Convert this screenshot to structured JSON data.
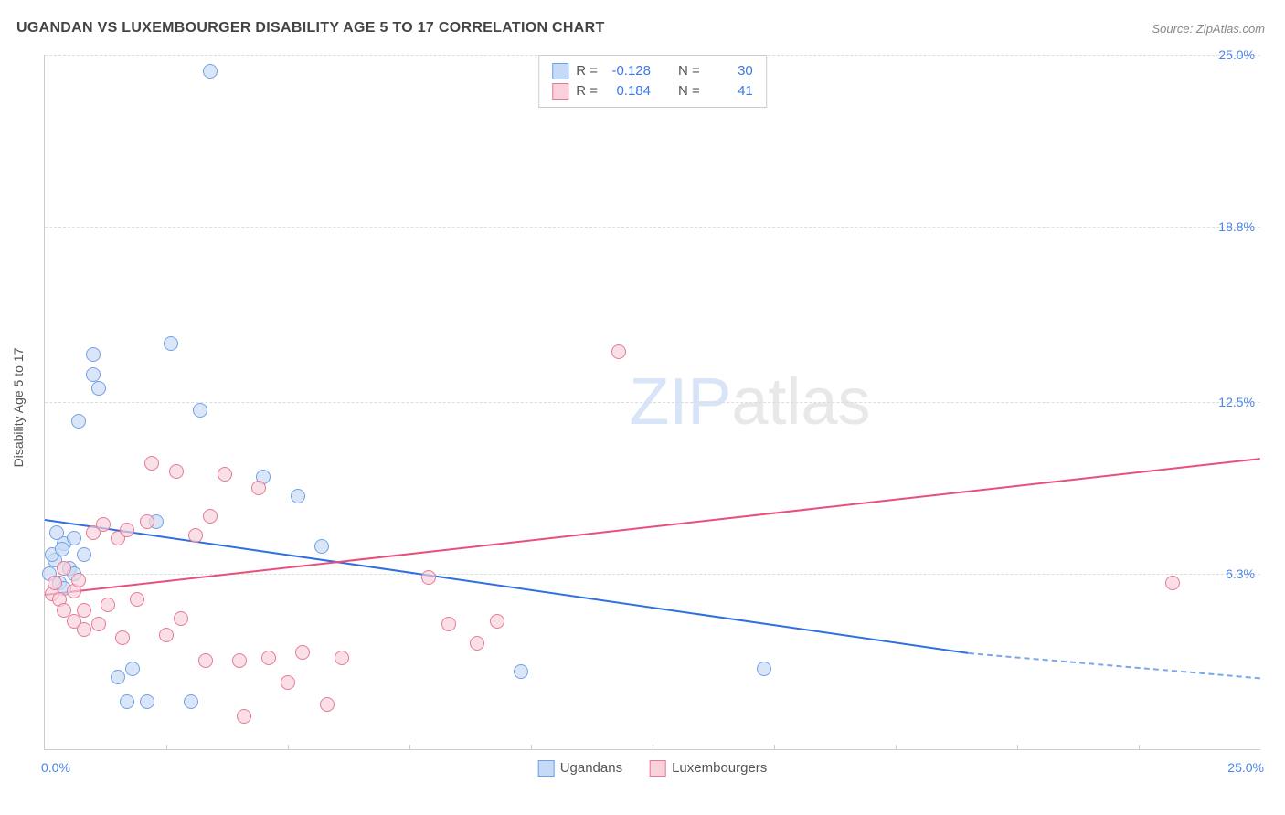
{
  "title": "UGANDAN VS LUXEMBOURGER DISABILITY AGE 5 TO 17 CORRELATION CHART",
  "source": "Source: ZipAtlas.com",
  "ylabel": "Disability Age 5 to 17",
  "watermark_a": "ZIP",
  "watermark_b": "atlas",
  "chart": {
    "type": "scatter",
    "xlim": [
      0,
      25
    ],
    "ylim": [
      0,
      25
    ],
    "xtick_min": "0.0%",
    "xtick_max": "25.0%",
    "yticks": [
      {
        "v": 6.3,
        "label": "6.3%"
      },
      {
        "v": 12.5,
        "label": "12.5%"
      },
      {
        "v": 18.8,
        "label": "18.8%"
      },
      {
        "v": 25.0,
        "label": "25.0%"
      }
    ],
    "xtick_minor_step": 2.5,
    "background_color": "#ffffff",
    "grid_color": "#dddddd",
    "axis_color": "#cccccc",
    "tick_label_color": "#4a86e8",
    "marker_radius": 7,
    "marker_stroke_width": 1.5
  },
  "series": [
    {
      "name": "Ugandans",
      "fill": "#c7daf5",
      "stroke": "#6fa1e6",
      "r": -0.128,
      "n": 30,
      "points": [
        [
          0.1,
          6.3
        ],
        [
          0.2,
          6.8
        ],
        [
          0.15,
          7.0
        ],
        [
          0.3,
          6.0
        ],
        [
          0.4,
          7.4
        ],
        [
          0.25,
          7.8
        ],
        [
          0.5,
          6.5
        ],
        [
          0.6,
          6.3
        ],
        [
          0.35,
          7.2
        ],
        [
          0.4,
          5.8
        ],
        [
          0.7,
          11.8
        ],
        [
          1.0,
          14.2
        ],
        [
          1.0,
          13.5
        ],
        [
          1.1,
          13.0
        ],
        [
          1.5,
          2.6
        ],
        [
          1.7,
          1.7
        ],
        [
          2.1,
          1.7
        ],
        [
          1.8,
          2.9
        ],
        [
          2.6,
          14.6
        ],
        [
          3.0,
          1.7
        ],
        [
          3.2,
          12.2
        ],
        [
          3.4,
          24.4
        ],
        [
          4.5,
          9.8
        ],
        [
          5.2,
          9.1
        ],
        [
          5.7,
          7.3
        ],
        [
          9.8,
          2.8
        ],
        [
          14.8,
          2.9
        ],
        [
          2.3,
          8.2
        ],
        [
          0.6,
          7.6
        ],
        [
          0.8,
          7.0
        ]
      ],
      "trend": {
        "x1": 0,
        "y1": 8.3,
        "x2": 19.0,
        "y2": 3.5,
        "style": "solid",
        "color": "#2f6fe0",
        "width": 2
      },
      "trend_ext": {
        "x1": 19.0,
        "y1": 3.5,
        "x2": 25.0,
        "y2": 2.6,
        "style": "dashed",
        "color": "#7aa6ea",
        "width": 2
      }
    },
    {
      "name": "Luxembourgers",
      "fill": "#f8d1da",
      "stroke": "#e57a96",
      "r": 0.184,
      "n": 41,
      "points": [
        [
          0.15,
          5.6
        ],
        [
          0.2,
          6.0
        ],
        [
          0.3,
          5.4
        ],
        [
          0.4,
          6.5
        ],
        [
          0.4,
          5.0
        ],
        [
          0.6,
          5.7
        ],
        [
          0.6,
          4.6
        ],
        [
          0.7,
          6.1
        ],
        [
          0.8,
          5.0
        ],
        [
          0.8,
          4.3
        ],
        [
          1.0,
          7.8
        ],
        [
          1.1,
          4.5
        ],
        [
          1.2,
          8.1
        ],
        [
          1.3,
          5.2
        ],
        [
          1.5,
          7.6
        ],
        [
          1.6,
          4.0
        ],
        [
          1.7,
          7.9
        ],
        [
          1.9,
          5.4
        ],
        [
          2.1,
          8.2
        ],
        [
          2.2,
          10.3
        ],
        [
          2.5,
          4.1
        ],
        [
          2.7,
          10.0
        ],
        [
          2.8,
          4.7
        ],
        [
          3.1,
          7.7
        ],
        [
          3.3,
          3.2
        ],
        [
          3.4,
          8.4
        ],
        [
          3.7,
          9.9
        ],
        [
          4.0,
          3.2
        ],
        [
          4.1,
          1.2
        ],
        [
          4.4,
          9.4
        ],
        [
          4.6,
          3.3
        ],
        [
          5.0,
          2.4
        ],
        [
          5.3,
          3.5
        ],
        [
          5.8,
          1.6
        ],
        [
          6.1,
          3.3
        ],
        [
          7.9,
          6.2
        ],
        [
          8.3,
          4.5
        ],
        [
          8.9,
          3.8
        ],
        [
          9.3,
          4.6
        ],
        [
          11.8,
          14.3
        ],
        [
          23.2,
          6.0
        ]
      ],
      "trend": {
        "x1": 0,
        "y1": 5.6,
        "x2": 25.0,
        "y2": 10.5,
        "style": "solid",
        "color": "#e84f7a",
        "width": 2
      }
    }
  ],
  "legend_top": {
    "r_label": "R =",
    "n_label": "N ="
  },
  "legend_bottom": [
    {
      "label": "Ugandans",
      "fill": "#c7daf5",
      "stroke": "#6fa1e6"
    },
    {
      "label": "Luxembourgers",
      "fill": "#f8d1da",
      "stroke": "#e57a96"
    }
  ]
}
